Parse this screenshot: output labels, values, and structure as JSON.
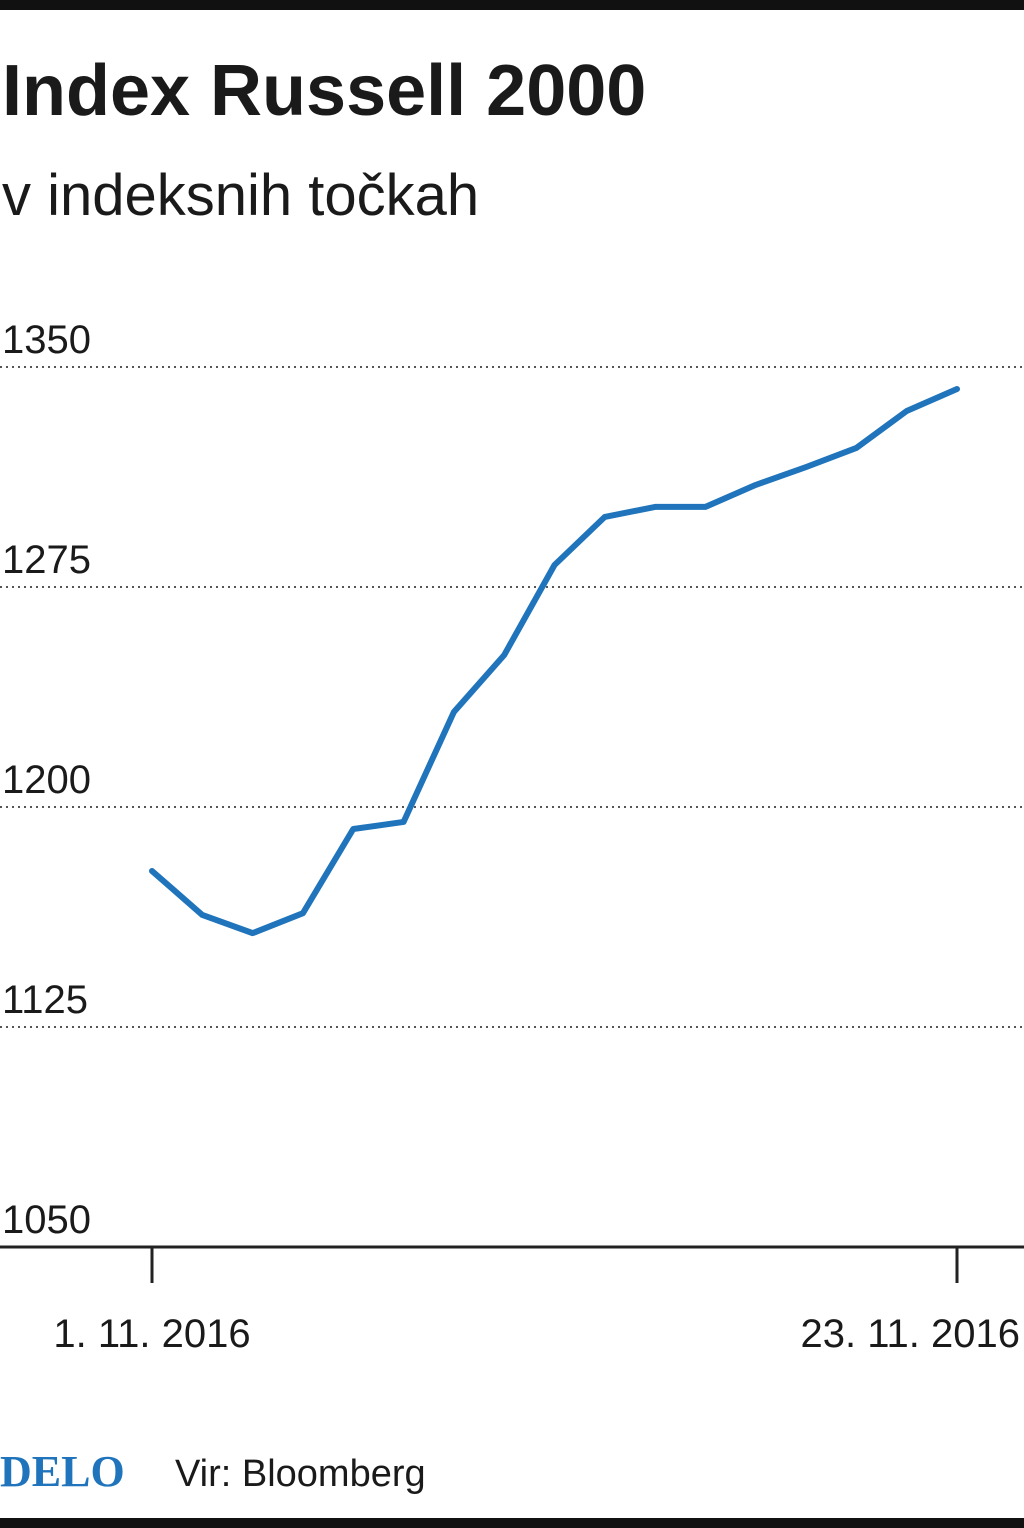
{
  "chart_data": {
    "type": "line",
    "title": "Index Russell 2000",
    "subtitle": "v indeksnih točkah",
    "categories": [
      "1. 11. 2016",
      null,
      null,
      null,
      null,
      null,
      null,
      null,
      null,
      null,
      null,
      null,
      null,
      null,
      null,
      null,
      "23. 11. 2016"
    ],
    "series": [
      {
        "name": "Russell 2000",
        "color": "#1f74bb",
        "values": [
          1178.2,
          1163.2,
          1157.0,
          1163.8,
          1192.5,
          1194.9,
          1232.4,
          1251.8,
          1282.5,
          1298.9,
          1302.3,
          1302.3,
          1309.8,
          1315.9,
          1322.4,
          1335.0,
          1342.5
        ]
      }
    ],
    "ylim": [
      1050,
      1350
    ],
    "yticks": [
      1050,
      1125,
      1200,
      1275,
      1350
    ],
    "grid": true,
    "logo": "DELO",
    "source": "Vir: Bloomberg"
  }
}
